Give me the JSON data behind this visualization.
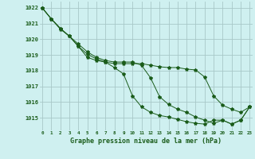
{
  "bg_color": "#cff0f0",
  "grid_color": "#a8c8c8",
  "line_color": "#1a5c1a",
  "marker_color": "#1a5c1a",
  "title": "Graphe pression niveau de la mer (hPa)",
  "ylim": [
    1014.2,
    1022.4
  ],
  "xlim": [
    -0.3,
    23.3
  ],
  "yticks": [
    1015,
    1016,
    1017,
    1018,
    1019,
    1020,
    1021,
    1022
  ],
  "xtick_labels": [
    "0",
    "1",
    "2",
    "3",
    "4",
    "5",
    "6",
    "7",
    "8",
    "9",
    "10",
    "11",
    "12",
    "13",
    "14",
    "15",
    "16",
    "17",
    "18",
    "19",
    "20",
    "21",
    "22",
    "23"
  ],
  "series1_x": [
    0,
    1,
    2,
    3,
    4,
    5,
    6,
    7,
    8,
    9,
    10,
    11,
    12,
    13,
    14,
    15,
    16,
    17,
    18,
    19,
    20,
    21,
    22,
    23
  ],
  "series1_y": [
    1022.0,
    1021.3,
    1020.7,
    1020.2,
    1019.55,
    1019.05,
    1018.75,
    1018.55,
    1018.45,
    1018.45,
    1018.45,
    1018.45,
    1018.35,
    1018.25,
    1018.2,
    1018.2,
    1018.1,
    1018.05,
    1017.6,
    1016.4,
    1015.8,
    1015.55,
    1015.35,
    1015.7
  ],
  "series2_x": [
    0,
    1,
    2,
    3,
    4,
    5,
    6,
    7,
    8,
    9,
    10,
    11,
    12,
    13,
    14,
    15,
    16,
    17,
    18,
    19,
    20,
    21,
    22,
    23
  ],
  "series2_y": [
    1022.0,
    1021.3,
    1020.7,
    1020.2,
    1019.55,
    1018.85,
    1018.65,
    1018.55,
    1018.2,
    1017.8,
    1016.4,
    1015.7,
    1015.35,
    1015.15,
    1015.05,
    1014.9,
    1014.75,
    1014.65,
    1014.6,
    1014.85,
    1014.85,
    1014.6,
    1014.85,
    1015.7
  ],
  "series3_x": [
    0,
    1,
    2,
    3,
    4,
    5,
    6,
    7,
    8,
    9,
    10,
    11,
    12,
    13,
    14,
    15,
    16,
    17,
    18,
    19,
    20,
    21,
    22,
    23
  ],
  "series3_y": [
    1022.0,
    1021.3,
    1020.65,
    1020.2,
    1019.7,
    1019.2,
    1018.85,
    1018.65,
    1018.55,
    1018.55,
    1018.55,
    1018.35,
    1017.55,
    1016.35,
    1015.85,
    1015.55,
    1015.35,
    1015.05,
    1014.85,
    1014.65,
    1014.85,
    1014.6,
    1014.85,
    1015.7
  ]
}
